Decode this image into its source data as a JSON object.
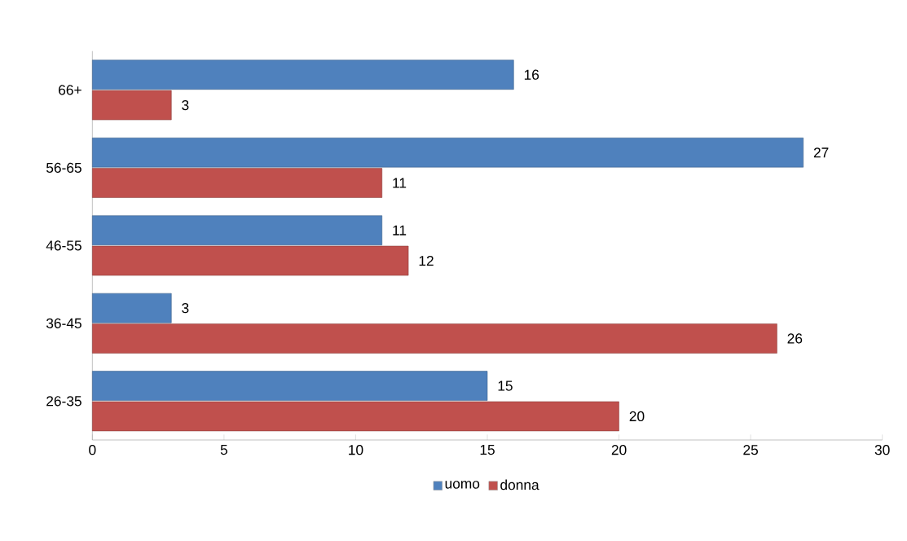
{
  "chart_data": {
    "type": "bar",
    "orientation": "horizontal",
    "categories": [
      "66+",
      "56-65",
      "46-55",
      "36-45",
      "26-35"
    ],
    "series": [
      {
        "name": "uomo",
        "color": "#4f81bd",
        "values": [
          16,
          27,
          11,
          3,
          15
        ]
      },
      {
        "name": "donna",
        "color": "#c0504d",
        "values": [
          3,
          11,
          12,
          26,
          20
        ]
      }
    ],
    "xlim": [
      0,
      30
    ],
    "xticks": [
      0,
      5,
      10,
      15,
      20,
      25,
      30
    ],
    "data_labels": true,
    "legend": "bottom",
    "grid": false
  }
}
